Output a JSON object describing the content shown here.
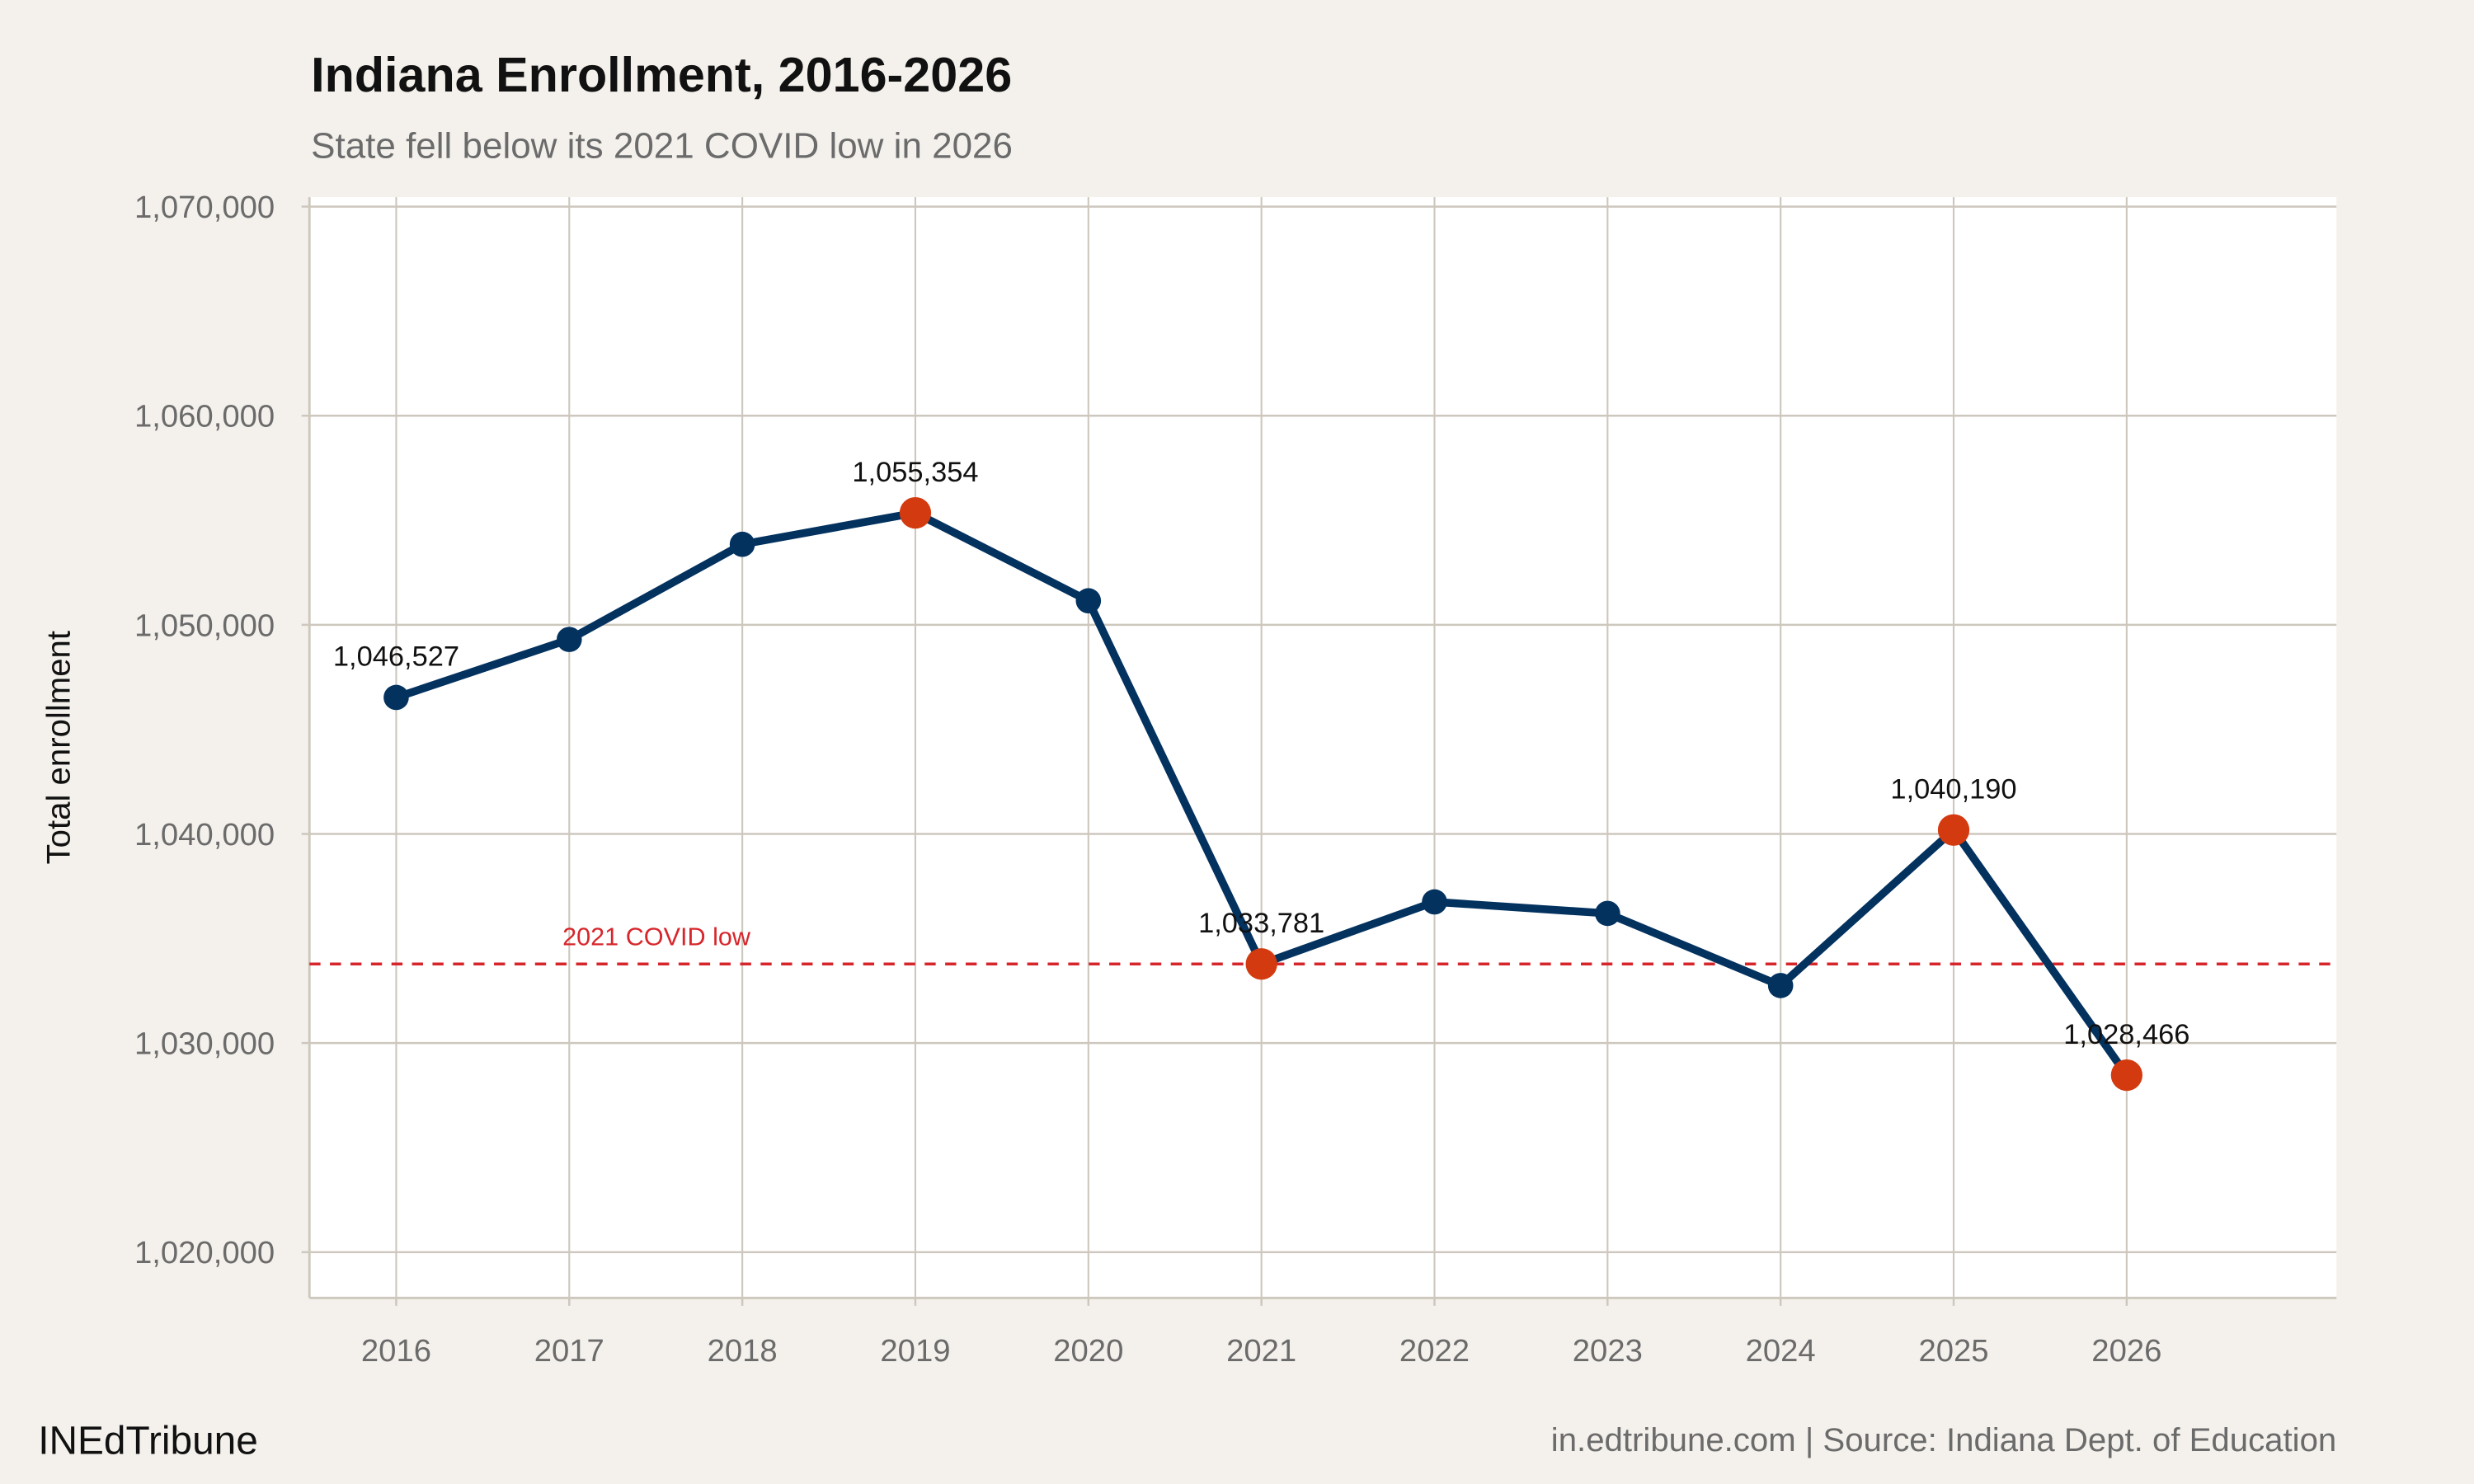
{
  "chart_data": {
    "type": "line",
    "title": "Indiana Enrollment, 2016-2026",
    "subtitle": "State fell below its 2021 COVID low in 2026",
    "xlabel": "",
    "ylabel": "Total enrollment",
    "x": [
      2016,
      2017,
      2018,
      2019,
      2020,
      2021,
      2022,
      2023,
      2024,
      2025,
      2026
    ],
    "values": [
      1046527,
      1049300,
      1053850,
      1055354,
      1051150,
      1033781,
      1036750,
      1036200,
      1032750,
      1040190,
      1028466
    ],
    "highlighted": [
      false,
      false,
      false,
      true,
      false,
      true,
      false,
      false,
      false,
      true,
      true
    ],
    "data_labels": [
      "1,046,527",
      "",
      "",
      "1,055,354",
      "",
      "1,033,781",
      "",
      "",
      "",
      "1,040,190",
      "1,028,466"
    ],
    "x_tick_labels": [
      "2016",
      "2017",
      "2018",
      "2019",
      "2020",
      "2021",
      "2022",
      "2023",
      "2024",
      "2025",
      "2026"
    ],
    "y_ticks": [
      1020000,
      1030000,
      1040000,
      1050000,
      1060000,
      1070000
    ],
    "y_tick_labels": [
      "1,020,000",
      "1,030,000",
      "1,040,000",
      "1,050,000",
      "1,060,000",
      "1,070,000"
    ],
    "ylim": [
      1017800,
      1070400
    ],
    "xlim": [
      2015.5,
      2026.7
    ],
    "grid": true,
    "reference_line": {
      "value": 1033781,
      "label": "2021 COVID low",
      "color": "#d7262b",
      "style": "dashed"
    },
    "colors": {
      "line": "#03325f",
      "highlight": "#d43a10",
      "background": "#f4f1ec",
      "panel": "#ffffff",
      "grid": "#cdc7bd"
    }
  },
  "footer": {
    "brand": "INEdTribune",
    "source": "in.edtribune.com | Source: Indiana Dept. of Education"
  }
}
